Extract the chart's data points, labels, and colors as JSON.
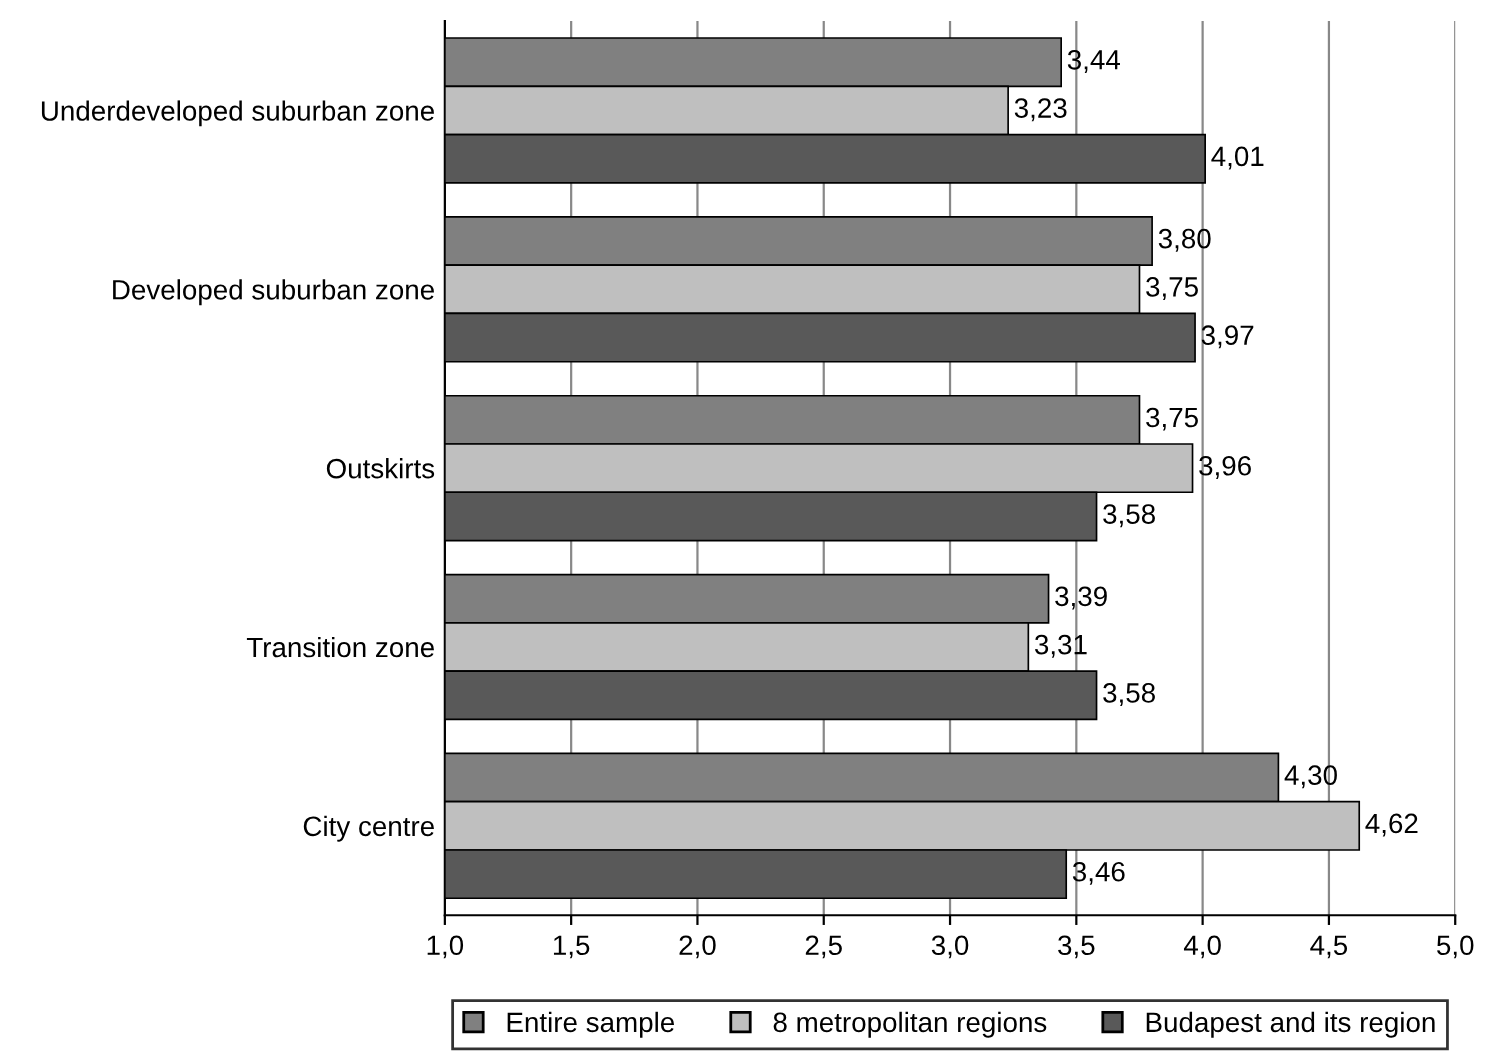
{
  "chart_data": {
    "type": "bar",
    "orientation": "horizontal",
    "categories": [
      "Underdeveloped suburban zone",
      "Developed suburban zone",
      "Outskirts",
      "Transition zone",
      "City centre"
    ],
    "series": [
      {
        "name": "Entire sample",
        "color": "#808080",
        "values": [
          3.44,
          3.8,
          3.75,
          3.39,
          4.3
        ],
        "value_labels": [
          "3,44",
          "3,80",
          "3,75",
          "3,39",
          "4,30"
        ]
      },
      {
        "name": "8 metropolitan regions",
        "color": "#bfbfbf",
        "values": [
          3.23,
          3.75,
          3.96,
          3.31,
          4.62
        ],
        "value_labels": [
          "3,23",
          "3,75",
          "3,96",
          "3,31",
          "4,62"
        ]
      },
      {
        "name": "Budapest and its region",
        "color": "#595959",
        "values": [
          4.01,
          3.97,
          3.58,
          3.58,
          3.46
        ],
        "value_labels": [
          "4,01",
          "3,97",
          "3,58",
          "3,58",
          "3,46"
        ]
      }
    ],
    "xlim": [
      1,
      5
    ],
    "xticks": [
      {
        "value": 1,
        "label": "1,0"
      },
      {
        "value": 1.5,
        "label": "1,5"
      },
      {
        "value": 2,
        "label": "2,0"
      },
      {
        "value": 2.5,
        "label": "2,5"
      },
      {
        "value": 3,
        "label": "3,0"
      },
      {
        "value": 3.5,
        "label": "3,5"
      },
      {
        "value": 4,
        "label": "4,0"
      },
      {
        "value": 4.5,
        "label": "4,5"
      },
      {
        "value": 5,
        "label": "5,0"
      }
    ],
    "grid": "x",
    "legend": "bottom"
  }
}
